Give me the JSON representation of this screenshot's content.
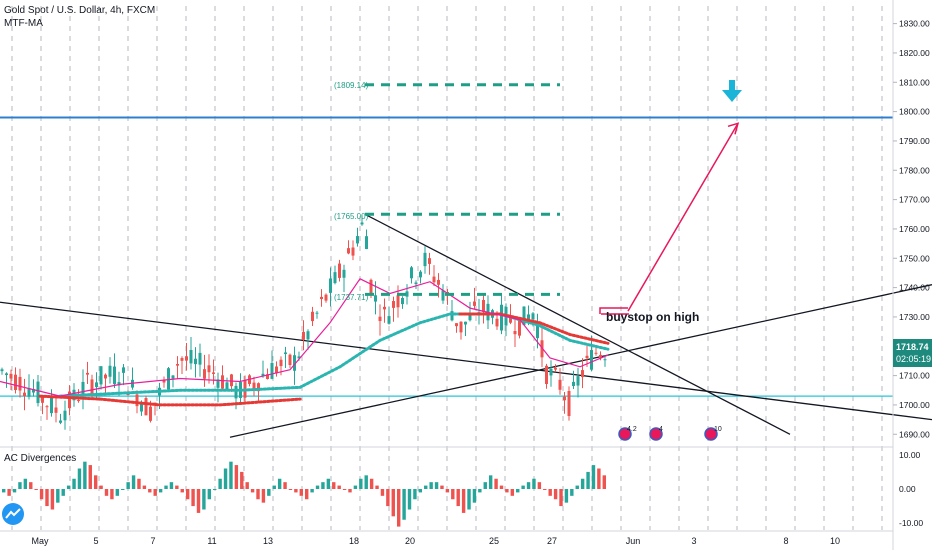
{
  "header": {
    "symbol": "Gold Spot / U.S. Dollar, 4h, FXCM",
    "indicator": "MTF-MA",
    "oscillator": "AC Divergences"
  },
  "price": {
    "last": "1718.74",
    "countdown": "02:05:19",
    "last_value": 1718.74
  },
  "annotations": {
    "buystop": "buystop on high",
    "level_1809": "(1809.14)",
    "level_1765": "(1765.00)",
    "level_1737": "(1737.71)",
    "event_1": "4.2",
    "event_2": "4",
    "event_3": "10"
  },
  "colors": {
    "up": "#26a69a",
    "down": "#ef5350",
    "ma_fast": "#e91e9b",
    "ma_mid": "#2bb5b0",
    "ma_slow": "#e53935",
    "level_blue": "#2f7fd1",
    "level_cyan": "#26c6da",
    "dash": "#1e9e85",
    "arrow": "#e8185a",
    "down_arrow": "#19b4d8",
    "trend": "#131722",
    "grid": "#b6b9c0"
  },
  "chart_data": {
    "type": "candlestick",
    "symbol": "Gold Spot / U.S. Dollar",
    "timeframe": "4h",
    "yaxis": {
      "range": [
        1686,
        1836
      ],
      "ticks": [
        "1830.00",
        "1820.00",
        "1810.00",
        "1800.00",
        "1790.00",
        "1780.00",
        "1770.00",
        "1760.00",
        "1750.00",
        "1740.00",
        "1730.00",
        "1720.00",
        "1710.00",
        "1700.00",
        "1690.00"
      ]
    },
    "xaxis": {
      "ticks": [
        "May",
        "5",
        "7",
        "11",
        "13",
        "18",
        "20",
        "25",
        "27",
        "Jun",
        "3",
        "8",
        "10"
      ]
    },
    "price_path": [
      {
        "x": 0,
        "y": 1712
      },
      {
        "x": 30,
        "y": 1706
      },
      {
        "x": 60,
        "y": 1697
      },
      {
        "x": 90,
        "y": 1708
      },
      {
        "x": 120,
        "y": 1711
      },
      {
        "x": 150,
        "y": 1698
      },
      {
        "x": 180,
        "y": 1716
      },
      {
        "x": 210,
        "y": 1712
      },
      {
        "x": 240,
        "y": 1704
      },
      {
        "x": 270,
        "y": 1712
      },
      {
        "x": 295,
        "y": 1715
      },
      {
        "x": 320,
        "y": 1733
      },
      {
        "x": 345,
        "y": 1748
      },
      {
        "x": 365,
        "y": 1763
      },
      {
        "x": 372,
        "y": 1738
      },
      {
        "x": 385,
        "y": 1730
      },
      {
        "x": 405,
        "y": 1740
      },
      {
        "x": 425,
        "y": 1749
      },
      {
        "x": 445,
        "y": 1738
      },
      {
        "x": 460,
        "y": 1726
      },
      {
        "x": 480,
        "y": 1733
      },
      {
        "x": 500,
        "y": 1730
      },
      {
        "x": 520,
        "y": 1728
      },
      {
        "x": 535,
        "y": 1732
      },
      {
        "x": 545,
        "y": 1712
      },
      {
        "x": 560,
        "y": 1707
      },
      {
        "x": 570,
        "y": 1700
      },
      {
        "x": 580,
        "y": 1710
      },
      {
        "x": 595,
        "y": 1718
      },
      {
        "x": 608,
        "y": 1718.74
      }
    ],
    "ma_fast": [
      {
        "x": 0,
        "y": 1708
      },
      {
        "x": 60,
        "y": 1703
      },
      {
        "x": 120,
        "y": 1707
      },
      {
        "x": 180,
        "y": 1709
      },
      {
        "x": 240,
        "y": 1708
      },
      {
        "x": 290,
        "y": 1712
      },
      {
        "x": 330,
        "y": 1728
      },
      {
        "x": 360,
        "y": 1743
      },
      {
        "x": 390,
        "y": 1738
      },
      {
        "x": 430,
        "y": 1742
      },
      {
        "x": 470,
        "y": 1733
      },
      {
        "x": 520,
        "y": 1729
      },
      {
        "x": 550,
        "y": 1716
      },
      {
        "x": 580,
        "y": 1713
      },
      {
        "x": 608,
        "y": 1717
      }
    ],
    "ma_mid": [
      {
        "x": 60,
        "y": 1703
      },
      {
        "x": 120,
        "y": 1704
      },
      {
        "x": 180,
        "y": 1705
      },
      {
        "x": 240,
        "y": 1705
      },
      {
        "x": 300,
        "y": 1706
      },
      {
        "x": 340,
        "y": 1713
      },
      {
        "x": 380,
        "y": 1722
      },
      {
        "x": 420,
        "y": 1728
      },
      {
        "x": 450,
        "y": 1731
      },
      {
        "x": 500,
        "y": 1731
      },
      {
        "x": 540,
        "y": 1727
      },
      {
        "x": 570,
        "y": 1722
      },
      {
        "x": 608,
        "y": 1719
      }
    ],
    "ma_slow": [
      {
        "x": 40,
        "y": 1703
      },
      {
        "x": 100,
        "y": 1702
      },
      {
        "x": 160,
        "y": 1700
      },
      {
        "x": 220,
        "y": 1700
      },
      {
        "x": 300,
        "y": 1702
      }
    ],
    "ma_slow_2": [
      {
        "x": 460,
        "y": 1731
      },
      {
        "x": 500,
        "y": 1731
      },
      {
        "x": 540,
        "y": 1728
      },
      {
        "x": 570,
        "y": 1724
      },
      {
        "x": 608,
        "y": 1721
      }
    ],
    "horizontal_levels": [
      {
        "label": "level_blue",
        "value": 1798
      },
      {
        "label": "level_cyan",
        "value": 1703
      }
    ],
    "dashed_levels": [
      {
        "label": "(1809.14)",
        "value": 1809.14,
        "x": [
          365,
          560
        ]
      },
      {
        "label": "(1765.00)",
        "value": 1765,
        "x": [
          365,
          560
        ]
      },
      {
        "label": "(1737.71)",
        "value": 1737.71,
        "x": [
          365,
          560
        ]
      }
    ],
    "trendlines": [
      {
        "from": {
          "x": 0,
          "y": 1735
        },
        "to": {
          "x": 932,
          "y": 1695
        }
      },
      {
        "from": {
          "x": 230,
          "y": 1689
        },
        "to": {
          "x": 932,
          "y": 1741
        }
      },
      {
        "from": {
          "x": 365,
          "y": 1765
        },
        "to": {
          "x": 790,
          "y": 1690
        }
      }
    ],
    "projection_arrow": [
      {
        "x": 600,
        "y": 1731
      },
      {
        "x": 628,
        "y": 1732
      },
      {
        "x": 628,
        "y": 1732
      },
      {
        "x": 738,
        "y": 1796
      }
    ],
    "oscillator": {
      "name": "AC Divergences",
      "range": [
        -12,
        12
      ],
      "ticks": [
        "10.00",
        "0.00",
        "-10.00"
      ],
      "bars": [
        -1,
        -2,
        -1,
        2,
        3,
        2,
        0,
        -3,
        -5,
        -6,
        -4,
        -2,
        1,
        3,
        6,
        8,
        7,
        4,
        1,
        -2,
        -3,
        -2,
        0,
        2,
        4,
        3,
        1,
        -1,
        -2,
        -1,
        1,
        2,
        1,
        -1,
        -3,
        -5,
        -7,
        -6,
        -3,
        0,
        3,
        6,
        8,
        7,
        5,
        2,
        -1,
        -3,
        -4,
        -2,
        1,
        3,
        2,
        0,
        -1,
        -2,
        -3,
        -1,
        1,
        2,
        3,
        2,
        1,
        0,
        -1,
        1,
        3,
        4,
        3,
        1,
        -2,
        -5,
        -8,
        -11,
        -9,
        -6,
        -3,
        -1,
        1,
        2,
        2,
        1,
        -1,
        -3,
        -5,
        -7,
        -6,
        -4,
        -1,
        2,
        4,
        3,
        1,
        -1,
        -2,
        -1,
        1,
        2,
        3,
        2,
        0,
        -2,
        -3,
        -5,
        -4,
        -2,
        1,
        3,
        5,
        7,
        6,
        4
      ]
    }
  }
}
